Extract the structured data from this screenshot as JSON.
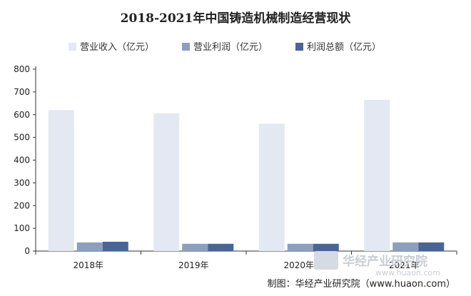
{
  "chart_data": {
    "type": "bar",
    "title": "2018-2021年中国铸造机械制造经营现状",
    "categories": [
      "2018年",
      "2019年",
      "2020年",
      "2021年"
    ],
    "series": [
      {
        "name": "营业收入（亿元）",
        "color": "#e3e8f3",
        "values": [
          620,
          606,
          560,
          665
        ]
      },
      {
        "name": "营业利润（亿元）",
        "color": "#8d9fbe",
        "values": [
          38,
          32,
          32,
          38
        ]
      },
      {
        "name": "利润总额（亿元）",
        "color": "#4a6595",
        "values": [
          41,
          32,
          32,
          38
        ]
      }
    ],
    "ylim": [
      0,
      800
    ],
    "yticks": [
      0,
      100,
      200,
      300,
      400,
      500,
      600,
      700,
      800
    ],
    "grid": false,
    "legend": "top-center"
  },
  "watermark": {
    "brand": "华经产业研究院",
    "url": "www.huaon.com"
  },
  "source": "制图：华经产业研究院（www.huaon.com）"
}
